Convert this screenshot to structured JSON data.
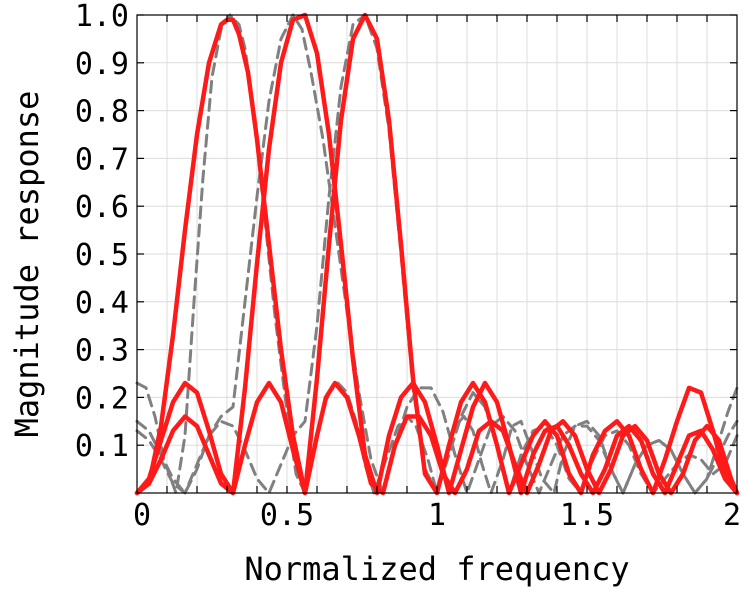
{
  "chart_data": {
    "type": "line",
    "title": "",
    "xlabel": "Normalized frequency",
    "ylabel": "Magnitude response",
    "xlim": [
      0,
      2
    ],
    "ylim": [
      0,
      1
    ],
    "grid": true,
    "legend": "none",
    "x_ticks": [
      0,
      0.5,
      1,
      1.5,
      2
    ],
    "x_tick_labels": [
      "0",
      "0.5",
      "1",
      "1.5",
      "2"
    ],
    "y_ticks": [
      0.1,
      0.2,
      0.3,
      0.4,
      0.5,
      0.6,
      0.7,
      0.8,
      0.9,
      1.0
    ],
    "y_tick_labels": [
      "0.1",
      "0.2",
      "0.3",
      "0.4",
      "0.5",
      "0.6",
      "0.7",
      "0.8",
      "0.9",
      "1.0"
    ],
    "series": [
      {
        "style": "dashed",
        "color": "#808080",
        "x": [
          0,
          0.03,
          0.06,
          0.09,
          0.13,
          0.16,
          0.19,
          0.22,
          0.25,
          0.28,
          0.31,
          0.34,
          0.36,
          0.38,
          0.4,
          0.43,
          0.46,
          0.5,
          0.53,
          0.56,
          0.58,
          0.61,
          0.64,
          0.67,
          0.7,
          0.73,
          0.76,
          0.79,
          0.83,
          0.87,
          0.9,
          0.93,
          0.97,
          1.0,
          1.03,
          1.06,
          1.09,
          1.12,
          1.15,
          1.18,
          1.22,
          1.25,
          1.28,
          1.31,
          1.35,
          1.39,
          1.42,
          1.46,
          1.5,
          1.54,
          1.58,
          1.62,
          1.66,
          1.7,
          1.74,
          1.78,
          1.82,
          1.86,
          1.9,
          1.94,
          1.97,
          2.0
        ],
        "y": [
          0.23,
          0.22,
          0.16,
          0.07,
          0.0,
          0.12,
          0.4,
          0.66,
          0.87,
          0.97,
          1.0,
          0.98,
          0.93,
          0.84,
          0.73,
          0.55,
          0.37,
          0.17,
          0.04,
          0.0,
          0.06,
          0.15,
          0.21,
          0.23,
          0.21,
          0.15,
          0.06,
          0.0,
          0.07,
          0.14,
          0.16,
          0.14,
          0.07,
          0.0,
          0.07,
          0.14,
          0.16,
          0.13,
          0.06,
          0.0,
          0.07,
          0.14,
          0.15,
          0.1,
          0.03,
          0.0,
          0.08,
          0.14,
          0.15,
          0.12,
          0.05,
          0.0,
          0.06,
          0.1,
          0.11,
          0.09,
          0.04,
          0.0,
          0.03,
          0.11,
          0.17,
          0.22
        ]
      },
      {
        "style": "dashed",
        "color": "#808080",
        "x": [
          0,
          0.04,
          0.08,
          0.12,
          0.16,
          0.2,
          0.24,
          0.28,
          0.32,
          0.36,
          0.4,
          0.44,
          0.48,
          0.52,
          0.55,
          0.58,
          0.62,
          0.66,
          0.7,
          0.74,
          0.78,
          0.82,
          0.86,
          0.9,
          0.94,
          0.98,
          1.02,
          1.06,
          1.1,
          1.14,
          1.18,
          1.22,
          1.26,
          1.3,
          1.34,
          1.38,
          1.42,
          1.46,
          1.5,
          1.54,
          1.58,
          1.62,
          1.66,
          1.7,
          1.74,
          1.78,
          1.82,
          1.86,
          1.9,
          1.94,
          1.97,
          2.0
        ],
        "y": [
          0.15,
          0.13,
          0.08,
          0.03,
          0.0,
          0.05,
          0.12,
          0.16,
          0.18,
          0.4,
          0.62,
          0.82,
          0.95,
          1.0,
          0.97,
          0.88,
          0.74,
          0.56,
          0.38,
          0.21,
          0.07,
          0.0,
          0.1,
          0.18,
          0.22,
          0.22,
          0.17,
          0.08,
          0.0,
          0.07,
          0.14,
          0.16,
          0.13,
          0.06,
          0.0,
          0.06,
          0.12,
          0.14,
          0.14,
          0.11,
          0.05,
          0.0,
          0.06,
          0.1,
          0.11,
          0.09,
          0.04,
          0.0,
          0.03,
          0.08,
          0.12,
          0.15
        ]
      },
      {
        "style": "dashed",
        "color": "#808080",
        "x": [
          0,
          0.04,
          0.08,
          0.12,
          0.16,
          0.2,
          0.24,
          0.28,
          0.32,
          0.36,
          0.4,
          0.44,
          0.48,
          0.52,
          0.56,
          0.6,
          0.64,
          0.68,
          0.72,
          0.76,
          0.8,
          0.84,
          0.88,
          0.92,
          0.96,
          1.0,
          1.04,
          1.08,
          1.12,
          1.16,
          1.2,
          1.24,
          1.28,
          1.32,
          1.36,
          1.4,
          1.44,
          1.48,
          1.52,
          1.56,
          1.6,
          1.64,
          1.68,
          1.72,
          1.76,
          1.8,
          1.84,
          1.88,
          1.92,
          1.96,
          2.0
        ],
        "y": [
          0.13,
          0.11,
          0.07,
          0.02,
          0.0,
          0.06,
          0.12,
          0.15,
          0.14,
          0.09,
          0.03,
          0.0,
          0.06,
          0.12,
          0.15,
          0.35,
          0.62,
          0.85,
          0.98,
          1.0,
          0.93,
          0.76,
          0.5,
          0.22,
          0.05,
          0.0,
          0.08,
          0.16,
          0.21,
          0.18,
          0.1,
          0.0,
          0.08,
          0.13,
          0.14,
          0.1,
          0.03,
          0.0,
          0.07,
          0.12,
          0.13,
          0.1,
          0.04,
          0.0,
          0.03,
          0.06,
          0.08,
          0.07,
          0.04,
          0.06,
          0.12
        ]
      },
      {
        "style": "solid",
        "color": "#ff1a1a",
        "x": [
          0,
          0.04,
          0.08,
          0.12,
          0.16,
          0.2,
          0.24,
          0.28,
          0.3,
          0.32,
          0.34,
          0.37,
          0.4,
          0.44,
          0.48,
          0.52,
          0.56,
          0.6,
          0.63,
          0.66,
          0.7,
          0.74,
          0.78,
          0.82,
          0.86,
          0.9,
          0.94,
          0.98,
          1.02,
          1.06,
          1.1,
          1.14,
          1.18,
          1.22,
          1.26,
          1.3,
          1.34,
          1.38,
          1.42,
          1.46,
          1.5,
          1.54,
          1.58,
          1.62,
          1.66,
          1.7,
          1.74,
          1.78,
          1.82,
          1.86,
          1.9,
          1.94,
          1.98,
          2.0
        ],
        "y": [
          0.0,
          0.02,
          0.14,
          0.33,
          0.55,
          0.75,
          0.9,
          0.98,
          0.99,
          0.99,
          0.96,
          0.88,
          0.74,
          0.52,
          0.3,
          0.12,
          0.0,
          0.12,
          0.2,
          0.23,
          0.2,
          0.12,
          0.02,
          0.0,
          0.1,
          0.16,
          0.16,
          0.12,
          0.04,
          0.0,
          0.05,
          0.13,
          0.15,
          0.13,
          0.06,
          0.0,
          0.06,
          0.13,
          0.15,
          0.12,
          0.05,
          0.0,
          0.05,
          0.12,
          0.14,
          0.11,
          0.04,
          0.0,
          0.04,
          0.11,
          0.14,
          0.11,
          0.03,
          0.0
        ]
      },
      {
        "style": "solid",
        "color": "#ff1a1a",
        "x": [
          0,
          0.04,
          0.08,
          0.12,
          0.16,
          0.2,
          0.24,
          0.28,
          0.32,
          0.36,
          0.4,
          0.44,
          0.48,
          0.52,
          0.56,
          0.6,
          0.64,
          0.68,
          0.72,
          0.76,
          0.8,
          0.84,
          0.88,
          0.92,
          0.96,
          1.0,
          1.04,
          1.08,
          1.12,
          1.16,
          1.2,
          1.24,
          1.28,
          1.32,
          1.36,
          1.4,
          1.44,
          1.48,
          1.52,
          1.56,
          1.6,
          1.64,
          1.68,
          1.72,
          1.76,
          1.8,
          1.84,
          1.88,
          1.92,
          1.96,
          2.0
        ],
        "y": [
          0.0,
          0.02,
          0.07,
          0.13,
          0.16,
          0.14,
          0.08,
          0.02,
          0.0,
          0.22,
          0.48,
          0.72,
          0.9,
          0.99,
          1.0,
          0.92,
          0.75,
          0.52,
          0.28,
          0.08,
          0.0,
          0.12,
          0.2,
          0.23,
          0.19,
          0.1,
          0.0,
          0.09,
          0.18,
          0.23,
          0.19,
          0.1,
          0.0,
          0.08,
          0.13,
          0.14,
          0.1,
          0.04,
          0.0,
          0.05,
          0.12,
          0.14,
          0.11,
          0.04,
          0.0,
          0.06,
          0.12,
          0.13,
          0.09,
          0.03,
          0.0
        ]
      },
      {
        "style": "solid",
        "color": "#ff1a1a",
        "x": [
          0,
          0.04,
          0.08,
          0.12,
          0.16,
          0.2,
          0.24,
          0.28,
          0.32,
          0.36,
          0.4,
          0.44,
          0.48,
          0.52,
          0.56,
          0.6,
          0.64,
          0.68,
          0.72,
          0.76,
          0.8,
          0.84,
          0.88,
          0.92,
          0.96,
          1.0,
          1.04,
          1.08,
          1.12,
          1.16,
          1.2,
          1.24,
          1.28,
          1.32,
          1.36,
          1.4,
          1.44,
          1.48,
          1.52,
          1.56,
          1.6,
          1.64,
          1.68,
          1.72,
          1.76,
          1.8,
          1.84,
          1.88,
          1.92,
          1.96,
          2.0
        ],
        "y": [
          0.0,
          0.03,
          0.11,
          0.19,
          0.23,
          0.21,
          0.13,
          0.04,
          0.0,
          0.1,
          0.19,
          0.23,
          0.19,
          0.09,
          0.0,
          0.24,
          0.52,
          0.78,
          0.95,
          1.0,
          0.95,
          0.78,
          0.52,
          0.24,
          0.04,
          0.0,
          0.1,
          0.19,
          0.23,
          0.19,
          0.1,
          0.0,
          0.06,
          0.12,
          0.15,
          0.12,
          0.04,
          0.0,
          0.08,
          0.13,
          0.15,
          0.12,
          0.05,
          0.0,
          0.07,
          0.15,
          0.22,
          0.21,
          0.13,
          0.04,
          0.0
        ]
      }
    ]
  }
}
